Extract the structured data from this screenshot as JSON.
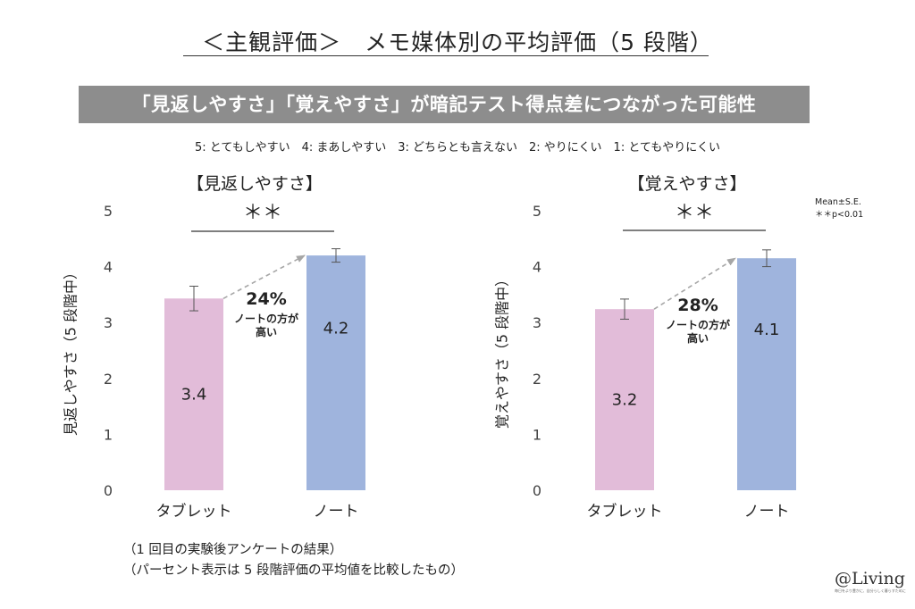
{
  "header": {
    "title": "＜主観評価＞　メモ媒体別の平均評価（5 段階）",
    "banner": "「見返しやすさ」「覚えやすさ」が暗記テスト得点差につながった可能性",
    "scale_legend": "5: とてもしやすい　4: まあしやすい　3: どちらとも言えない　2: やりにくい　1: とてもやりにくい"
  },
  "notes": {
    "mean_se": "Mean±S.E.",
    "significance": "＊＊p<0.01"
  },
  "footnotes": {
    "line1": "（1 回目の実験後アンケートの結果）",
    "line2": "（パーセント表示は 5 段階評価の平均値を比較したもの）"
  },
  "brand": {
    "name": "@Living",
    "tagline": "毎日をより豊かに、自分らしく暮らすために"
  },
  "colors": {
    "tablet": "#e2bcd9",
    "note": "#9fb4dd",
    "arrow": "#a6a6a6",
    "banner": "#8d8d8d"
  },
  "chart_data": [
    {
      "type": "bar",
      "title": "【見返しやすさ】",
      "ylabel": "見返しやすさ（5 段階中）",
      "ylim": [
        0,
        5
      ],
      "yticks": [
        0,
        1,
        2,
        3,
        4,
        5
      ],
      "ytick_labels": [
        "0",
        "1",
        "2",
        "3",
        "4",
        "5"
      ],
      "categories": [
        "タブレット",
        "ノート"
      ],
      "values": [
        3.43,
        4.2
      ],
      "value_labels": [
        "3.4",
        "4.2"
      ],
      "errors": [
        0.22,
        0.12
      ],
      "significance": "＊＊",
      "difference": {
        "percent": "24%",
        "line1": "ノートの方が",
        "line2": "高い"
      }
    },
    {
      "type": "bar",
      "title": "【覚えやすさ】",
      "ylabel": "覚えやすさ（5 段階中）",
      "ylim": [
        0,
        5
      ],
      "yticks": [
        0,
        1,
        2,
        3,
        4,
        5
      ],
      "ytick_labels": [
        "0",
        "1",
        "2",
        "3",
        "4",
        "5"
      ],
      "categories": [
        "タブレット",
        "ノート"
      ],
      "values": [
        3.24,
        4.15
      ],
      "value_labels": [
        "3.2",
        "4.1"
      ],
      "errors": [
        0.18,
        0.15
      ],
      "significance": "＊＊",
      "difference": {
        "percent": "28%",
        "line1": "ノートの方が",
        "line2": "高い"
      }
    }
  ]
}
